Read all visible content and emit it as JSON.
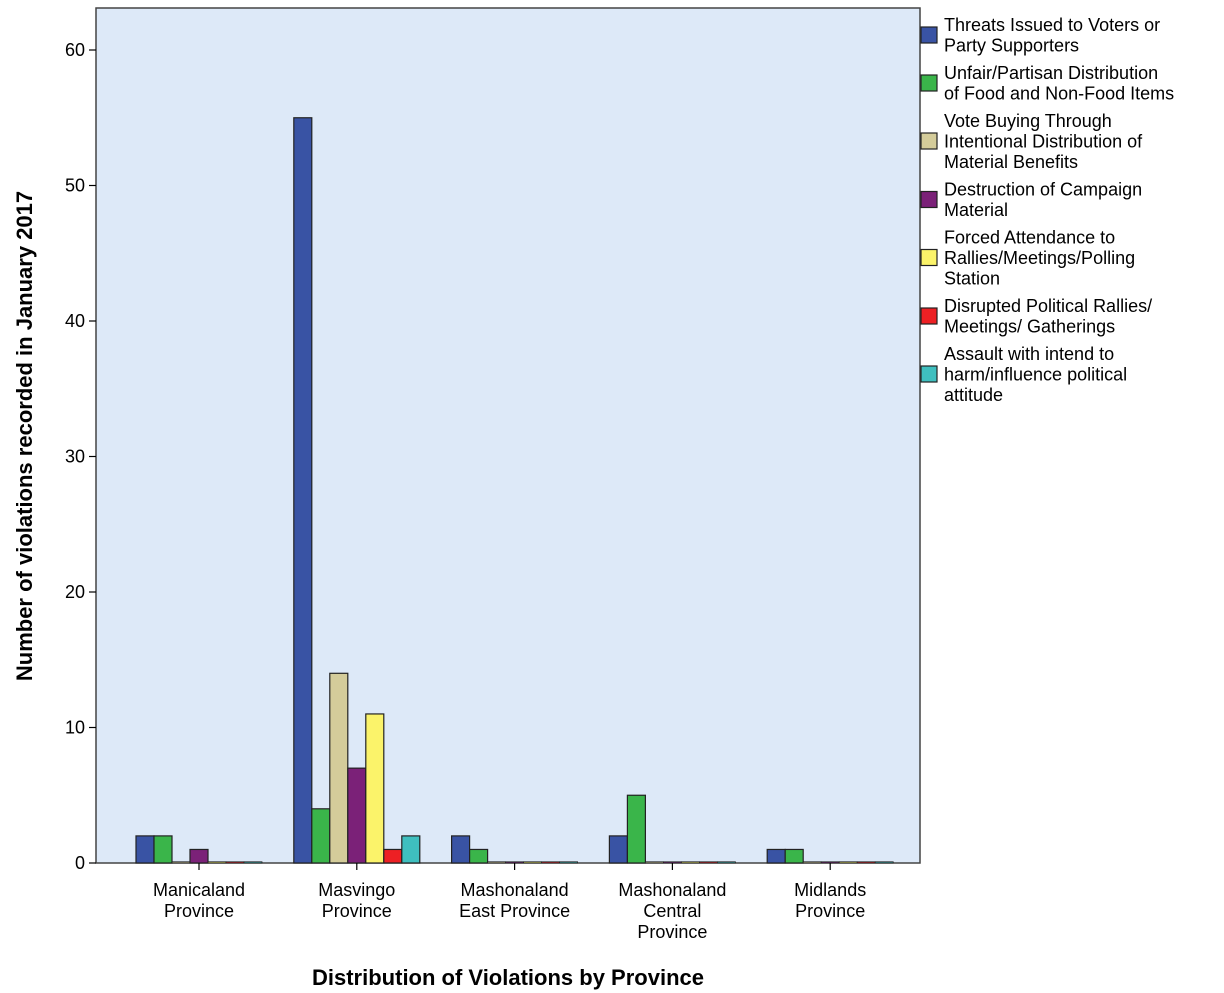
{
  "chart_data": {
    "type": "bar",
    "title": "",
    "xlabel": "Distribution of Violations by Province",
    "ylabel": "Number of violations recorded in January 2017",
    "ylim": [
      0,
      63
    ],
    "yticks": [
      "0",
      "10",
      "20",
      "30",
      "40",
      "50",
      "60"
    ],
    "grid": false,
    "legend_position": "right",
    "plot_background": "#dde9f8",
    "categories": [
      [
        "Manicaland",
        "Province"
      ],
      [
        "Masvingo",
        "Province"
      ],
      [
        "Mashonaland",
        "East Province"
      ],
      [
        "Mashonaland",
        "Central",
        "Province"
      ],
      [
        "Midlands",
        "Province"
      ]
    ],
    "series": [
      {
        "name": [
          "Threats Issued to Voters or",
          "Party Supporters"
        ],
        "color": "#3953a4",
        "values": [
          2,
          55,
          2,
          2,
          1
        ]
      },
      {
        "name": [
          "Unfair/Partisan Distribution",
          "of Food and Non-Food Items"
        ],
        "color": "#3ab54a",
        "values": [
          2,
          4,
          1,
          5,
          1
        ]
      },
      {
        "name": [
          "Vote Buying Through",
          "Intentional Distribution of",
          "Material Benefits"
        ],
        "color": "#d4cc9a",
        "values": [
          0,
          14,
          0,
          0,
          0
        ]
      },
      {
        "name": [
          "Destruction of Campaign",
          "Material"
        ],
        "color": "#7b2178",
        "values": [
          1,
          7,
          0,
          0,
          0
        ]
      },
      {
        "name": [
          "Forced Attendance to",
          "Rallies/Meetings/Polling",
          "Station"
        ],
        "color": "#fbf36a",
        "values": [
          0,
          11,
          0,
          0,
          0
        ]
      },
      {
        "name": [
          "Disrupted Political Rallies/",
          "Meetings/ Gatherings"
        ],
        "color": "#ed2024",
        "values": [
          0,
          1,
          0,
          0,
          0
        ]
      },
      {
        "name": [
          "Assault with intend to",
          "harm/influence political",
          "attitude"
        ],
        "color": "#3fbfbf",
        "values": [
          0,
          2,
          0,
          0,
          0
        ]
      }
    ]
  }
}
